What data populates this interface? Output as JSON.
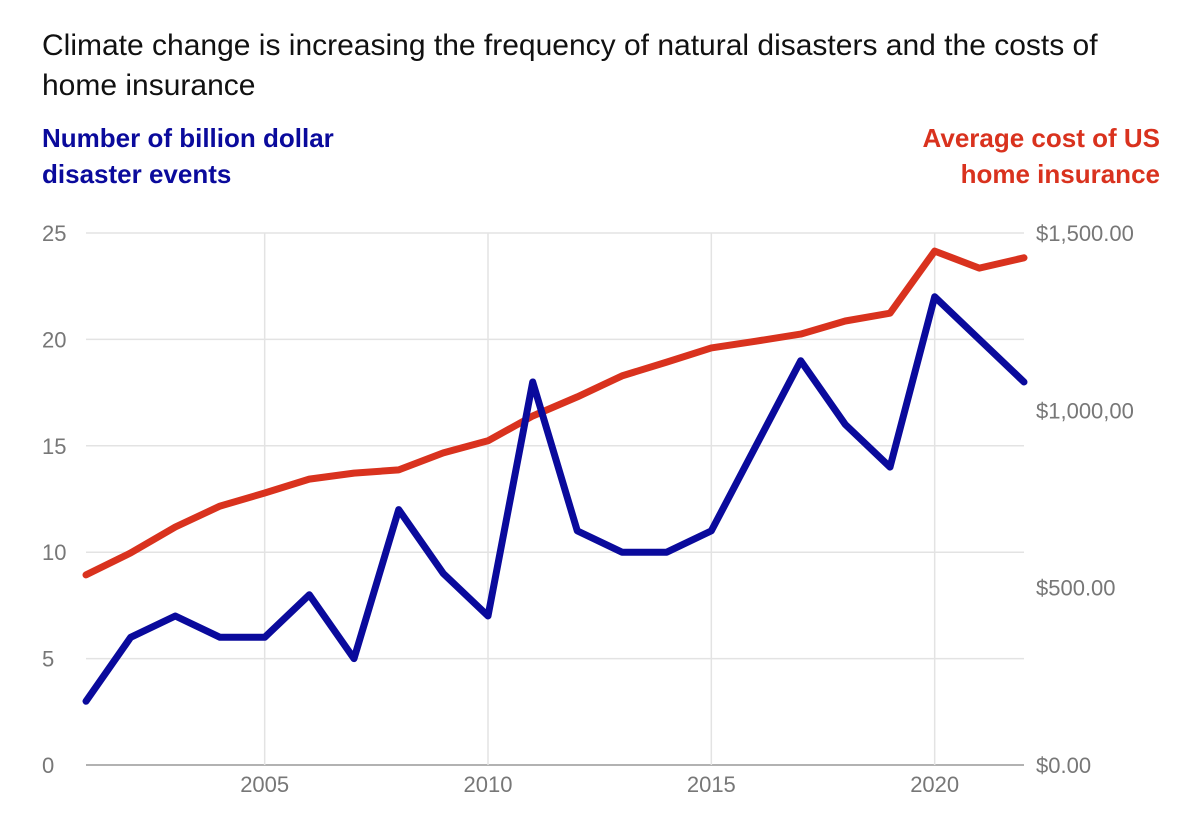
{
  "chart_data": {
    "type": "line",
    "title": "Climate change is increasing the frequency of natural disasters and the costs of home insurance",
    "left_axis_label": "Number of billion dollar disaster events",
    "right_axis_label": "Average cost of US home insurance",
    "x": [
      2001,
      2002,
      2003,
      2004,
      2005,
      2006,
      2007,
      2008,
      2009,
      2010,
      2011,
      2012,
      2013,
      2014,
      2015,
      2016,
      2017,
      2018,
      2019,
      2020,
      2021,
      2022
    ],
    "xlim": [
      2001,
      2022
    ],
    "x_ticks": [
      "2005",
      "2010",
      "2015",
      "2020"
    ],
    "x_tick_values": [
      2005,
      2010,
      2015,
      2020
    ],
    "ylim_left": [
      0,
      25
    ],
    "left_ticks": [
      "0",
      "5",
      "10",
      "15",
      "20",
      "25"
    ],
    "left_tick_values": [
      0,
      5,
      10,
      15,
      20,
      25
    ],
    "ylim_right": [
      0,
      1500
    ],
    "right_ticks": [
      "$0.00",
      "$500.00",
      "$1,000,00",
      "$1,500.00"
    ],
    "right_tick_values": [
      0,
      500,
      1000,
      1500
    ],
    "grid": true,
    "series": [
      {
        "name": "Number of billion dollar disaster events",
        "axis": "left",
        "color": "#0a0a9c",
        "values": [
          3,
          6,
          7,
          6,
          6,
          8,
          5,
          12,
          9,
          7,
          18,
          11,
          10,
          10,
          11,
          15,
          19,
          16,
          14,
          22,
          20,
          18
        ]
      },
      {
        "name": "Average cost of US home insurance",
        "axis": "right",
        "color": "#d9321e",
        "values": [
          536,
          598,
          671,
          730,
          767,
          806,
          823,
          832,
          880,
          914,
          984,
          1038,
          1097,
          1136,
          1176,
          1195,
          1215,
          1252,
          1274,
          1449,
          1401,
          1430
        ]
      }
    ]
  }
}
